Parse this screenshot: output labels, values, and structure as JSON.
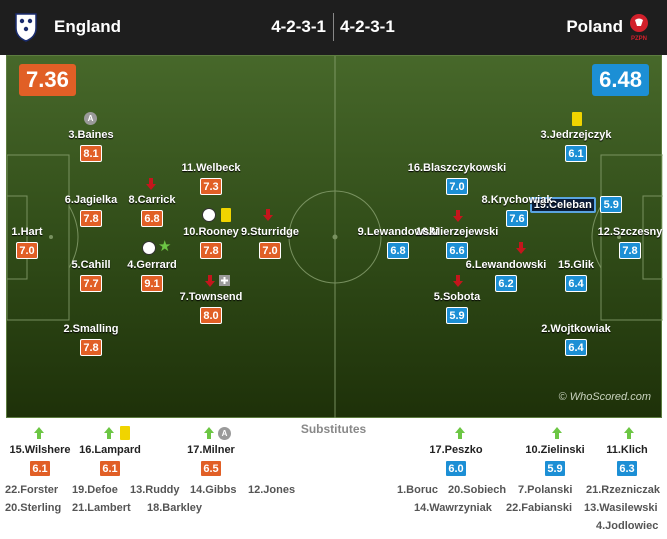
{
  "header": {
    "home_team": "England",
    "away_team": "Poland",
    "home_formation": "4-2-3-1",
    "away_formation": "4-2-3-1",
    "away_crest_text": "PZPN"
  },
  "ratings": {
    "home": "7.36",
    "away": "6.48"
  },
  "watermark": "© WhoScored.com",
  "home_players": [
    {
      "name": "1.Hart",
      "rating": "7.0"
    },
    {
      "name": "3.Baines",
      "rating": "8.1"
    },
    {
      "name": "6.Jagielka",
      "rating": "7.8"
    },
    {
      "name": "5.Cahill",
      "rating": "7.7"
    },
    {
      "name": "2.Smalling",
      "rating": "7.8"
    },
    {
      "name": "8.Carrick",
      "rating": "6.8"
    },
    {
      "name": "4.Gerrard",
      "rating": "9.1"
    },
    {
      "name": "11.Welbeck",
      "rating": "7.3"
    },
    {
      "name": "10.Rooney",
      "rating": "7.8"
    },
    {
      "name": "7.Townsend",
      "rating": "8.0"
    },
    {
      "name": "9.Sturridge",
      "rating": "7.0"
    }
  ],
  "away_players": [
    {
      "name": "12.Szczesny",
      "rating": "7.8"
    },
    {
      "name": "3.Jedrzejczyk",
      "rating": "6.1"
    },
    {
      "name": "19.Celeban",
      "rating": "5.9"
    },
    {
      "name": "15.Glik",
      "rating": "6.4"
    },
    {
      "name": "2.Wojtkowiak",
      "rating": "6.4"
    },
    {
      "name": "8.Krychowiak",
      "rating": "7.6"
    },
    {
      "name": "6.Lewandowski",
      "rating": "6.2"
    },
    {
      "name": "16.Blaszczykowski",
      "rating": "7.0"
    },
    {
      "name": "10.Mierzejewski",
      "rating": "6.6"
    },
    {
      "name": "5.Sobota",
      "rating": "5.9"
    },
    {
      "name": "9.Lewandowski",
      "rating": "6.8"
    }
  ],
  "subs": {
    "title": "Substitutes",
    "home_used": [
      {
        "name": "15.Wilshere",
        "rating": "6.1"
      },
      {
        "name": "16.Lampard",
        "rating": "6.1"
      },
      {
        "name": "17.Milner",
        "rating": "6.5"
      }
    ],
    "away_used": [
      {
        "name": "17.Peszko",
        "rating": "6.0"
      },
      {
        "name": "10.Zielinski",
        "rating": "5.9"
      },
      {
        "name": "11.Klich",
        "rating": "6.3"
      }
    ],
    "home_bench": [
      "22.Forster",
      "19.Defoe",
      "13.Ruddy",
      "14.Gibbs",
      "12.Jones",
      "20.Sterling",
      "21.Lambert",
      "18.Barkley"
    ],
    "away_bench": [
      "1.Boruc",
      "20.Sobiech",
      "7.Polanski",
      "21.Rzezniczak",
      "14.Wawrzyniak",
      "22.Fabianski",
      "13.Wasilewski",
      "4.Jodlowiec"
    ]
  },
  "colors": {
    "home": "#e15f26",
    "away": "#1c8fd5",
    "header_bg": "#1e1e1e"
  }
}
